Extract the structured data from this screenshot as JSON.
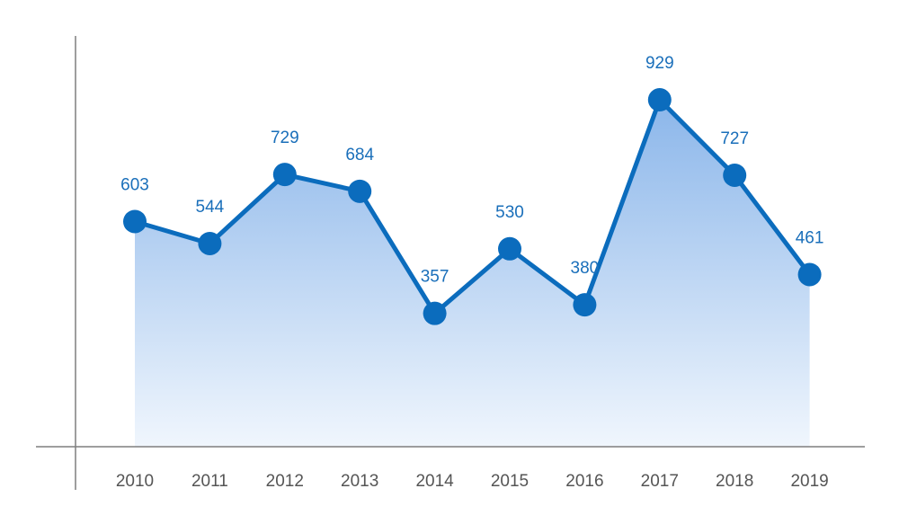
{
  "chart_data": {
    "type": "area",
    "categories": [
      "2010",
      "2011",
      "2012",
      "2013",
      "2014",
      "2015",
      "2016",
      "2017",
      "2018",
      "2019"
    ],
    "series": [
      {
        "values": [
          603,
          544,
          729,
          684,
          357,
          530,
          380,
          929,
          727,
          461
        ]
      }
    ],
    "title": "",
    "xlabel": "",
    "ylabel": "",
    "ylim": [
      0,
      1100
    ],
    "grid": false,
    "legend": "none",
    "colors": {
      "line": "#0b6cbd",
      "marker": "#0b6cbd",
      "fill_top": "#8bb6ea",
      "fill_bottom": "#f0f6fd",
      "axis": "#7f7f7f",
      "label": "#1a6fba"
    }
  }
}
